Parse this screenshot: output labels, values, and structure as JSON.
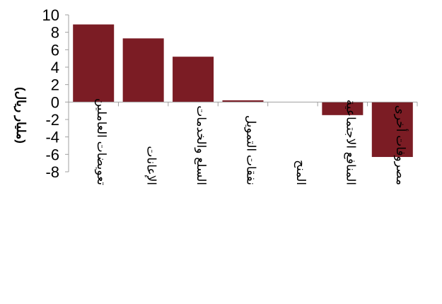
{
  "chart_data": {
    "type": "bar",
    "categories": [
      "تعويضات العاملين",
      "الإعانات",
      "السلع والخدمات",
      "نفقات التمويل",
      "المنح",
      "المنافع الاجتماعية",
      "مصروفات أخرى"
    ],
    "values": [
      8.9,
      7.3,
      5.2,
      0.2,
      0.0,
      -1.5,
      -6.3
    ],
    "ylabel": "(مليار ريال)",
    "ylim": [
      -8,
      10
    ],
    "yticks": [
      10,
      8,
      6,
      4,
      2,
      0,
      -2,
      -4,
      -6,
      -8
    ],
    "bar_color": "#7b1c24",
    "axis_color": "#a0a0a0",
    "grid": false,
    "legend": "none"
  }
}
